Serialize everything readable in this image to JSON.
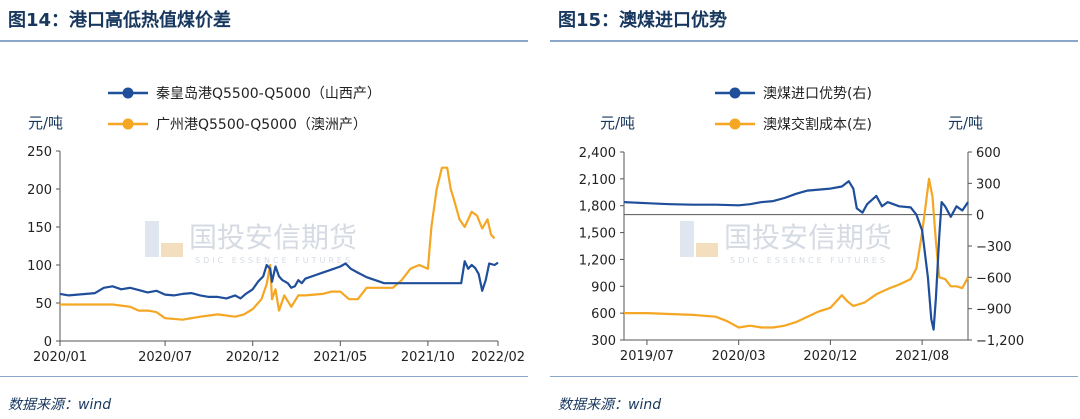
{
  "left_panel": {
    "title": "图14：港口高低热值煤价差",
    "source": "数据来源：wind",
    "watermark": {
      "cn": "国投安信期货",
      "en": "SDIC ESSENCE FUTURES"
    }
  },
  "right_panel": {
    "title": "图15：澳煤进口优势",
    "source": "数据来源：wind",
    "watermark": {
      "cn": "国投安信期货",
      "en": "SDIC ESSENCE FUTURES"
    }
  },
  "colors": {
    "blue": "#1f4e9b",
    "orange": "#f5a623",
    "axis": "#555555",
    "title": "#17375e"
  },
  "chart_data": [
    {
      "type": "line",
      "title": "图14：港口高低热值煤价差",
      "unit_left": "元/吨",
      "y_ticks": [
        "0",
        "50",
        "100",
        "150",
        "200",
        "250"
      ],
      "ylim": [
        0,
        250
      ],
      "x_ticks": [
        "2020/01",
        "2020/07",
        "2020/12",
        "2021/05",
        "2021/10",
        "2022/02"
      ],
      "x_tick_pos": [
        0,
        6,
        11,
        16,
        21,
        25
      ],
      "xlim": [
        0,
        25
      ],
      "series": [
        {
          "name": "秦皇岛港Q5500-Q5000（山西产）",
          "color": "#1f4e9b",
          "points": [
            [
              0,
              62
            ],
            [
              0.5,
              60
            ],
            [
              1,
              61
            ],
            [
              1.5,
              62
            ],
            [
              2,
              63
            ],
            [
              2.5,
              70
            ],
            [
              3,
              72
            ],
            [
              3.5,
              68
            ],
            [
              4,
              70
            ],
            [
              4.5,
              67
            ],
            [
              5,
              64
            ],
            [
              5.5,
              66
            ],
            [
              6,
              61
            ],
            [
              6.5,
              60
            ],
            [
              7,
              62
            ],
            [
              7.5,
              63
            ],
            [
              8,
              60
            ],
            [
              8.5,
              58
            ],
            [
              9,
              58
            ],
            [
              9.5,
              56
            ],
            [
              10,
              60
            ],
            [
              10.3,
              56
            ],
            [
              10.6,
              62
            ],
            [
              11,
              68
            ],
            [
              11.3,
              78
            ],
            [
              11.6,
              85
            ],
            [
              11.8,
              100
            ],
            [
              12,
              95
            ],
            [
              12.1,
              78
            ],
            [
              12.3,
              98
            ],
            [
              12.5,
              85
            ],
            [
              12.7,
              80
            ],
            [
              13,
              76
            ],
            [
              13.2,
              70
            ],
            [
              13.4,
              72
            ],
            [
              13.6,
              80
            ],
            [
              13.8,
              76
            ],
            [
              14,
              82
            ],
            [
              14.5,
              86
            ],
            [
              15,
              90
            ],
            [
              15.5,
              94
            ],
            [
              16,
              98
            ],
            [
              16.3,
              102
            ],
            [
              16.6,
              95
            ],
            [
              17,
              90
            ],
            [
              17.5,
              84
            ],
            [
              18,
              80
            ],
            [
              18.5,
              76
            ],
            [
              19,
              76
            ],
            [
              20,
              76
            ],
            [
              21,
              76
            ],
            [
              22,
              76
            ],
            [
              22.9,
              76
            ],
            [
              23.1,
              105
            ],
            [
              23.3,
              95
            ],
            [
              23.5,
              100
            ],
            [
              23.7,
              96
            ],
            [
              23.9,
              88
            ],
            [
              24.1,
              66
            ],
            [
              24.3,
              80
            ],
            [
              24.5,
              102
            ],
            [
              24.8,
              100
            ],
            [
              25,
              103
            ]
          ]
        },
        {
          "name": "广州港Q5500-Q5000（澳洲产）",
          "color": "#f5a623",
          "points": [
            [
              0,
              48
            ],
            [
              1,
              48
            ],
            [
              2,
              48
            ],
            [
              3,
              48
            ],
            [
              4,
              45
            ],
            [
              4.5,
              40
            ],
            [
              5,
              40
            ],
            [
              5.5,
              38
            ],
            [
              6,
              30
            ],
            [
              7,
              28
            ],
            [
              8,
              32
            ],
            [
              9,
              35
            ],
            [
              10,
              32
            ],
            [
              10.5,
              35
            ],
            [
              11,
              42
            ],
            [
              11.5,
              55
            ],
            [
              11.8,
              75
            ],
            [
              12,
              100
            ],
            [
              12.1,
              55
            ],
            [
              12.3,
              68
            ],
            [
              12.5,
              40
            ],
            [
              12.8,
              60
            ],
            [
              13.2,
              45
            ],
            [
              13.6,
              60
            ],
            [
              14,
              60
            ],
            [
              15,
              62
            ],
            [
              15.5,
              65
            ],
            [
              16,
              65
            ],
            [
              16.5,
              55
            ],
            [
              17,
              55
            ],
            [
              17.5,
              70
            ],
            [
              18,
              70
            ],
            [
              19,
              70
            ],
            [
              19.5,
              80
            ],
            [
              20,
              95
            ],
            [
              20.5,
              100
            ],
            [
              21,
              95
            ],
            [
              21.2,
              150
            ],
            [
              21.5,
              200
            ],
            [
              21.8,
              228
            ],
            [
              22.1,
              228
            ],
            [
              22.3,
              200
            ],
            [
              22.5,
              185
            ],
            [
              22.8,
              160
            ],
            [
              23.1,
              150
            ],
            [
              23.5,
              170
            ],
            [
              23.8,
              165
            ],
            [
              24.1,
              148
            ],
            [
              24.4,
              160
            ],
            [
              24.6,
              140
            ],
            [
              24.8,
              135
            ]
          ]
        }
      ]
    },
    {
      "type": "line",
      "title": "图15：澳煤进口优势",
      "unit_left": "元/吨",
      "unit_right": "元/吨",
      "y_left_ticks": [
        "300",
        "600",
        "900",
        "1,200",
        "1,500",
        "1,800",
        "2,100",
        "2,400"
      ],
      "ylim_left": [
        300,
        2400
      ],
      "y_right_ticks": [
        "−1,200",
        "−900",
        "−600",
        "−300",
        "0",
        "300",
        "600"
      ],
      "ylim_right": [
        -1200,
        600
      ],
      "x_ticks": [
        "2019/07",
        "2020/03",
        "2020/12",
        "2021/08"
      ],
      "x_tick_pos": [
        2,
        10,
        18,
        26
      ],
      "xlim": [
        0,
        30
      ],
      "series": [
        {
          "name": "澳煤进口优势(右)",
          "color": "#1f4e9b",
          "axis": "right",
          "points": [
            [
              0,
              120
            ],
            [
              2,
              110
            ],
            [
              4,
              100
            ],
            [
              6,
              95
            ],
            [
              8,
              95
            ],
            [
              10,
              90
            ],
            [
              11,
              100
            ],
            [
              12,
              120
            ],
            [
              13,
              130
            ],
            [
              14,
              160
            ],
            [
              15,
              200
            ],
            [
              16,
              230
            ],
            [
              17,
              240
            ],
            [
              18,
              250
            ],
            [
              19,
              270
            ],
            [
              19.6,
              320
            ],
            [
              20,
              250
            ],
            [
              20.3,
              60
            ],
            [
              20.8,
              20
            ],
            [
              21.2,
              100
            ],
            [
              22,
              180
            ],
            [
              22.5,
              80
            ],
            [
              23,
              120
            ],
            [
              24,
              80
            ],
            [
              25,
              70
            ],
            [
              25.5,
              0
            ],
            [
              26,
              -150
            ],
            [
              26.5,
              -600
            ],
            [
              26.8,
              -1000
            ],
            [
              27,
              -1100
            ],
            [
              27.2,
              -800
            ],
            [
              27.5,
              -200
            ],
            [
              27.7,
              120
            ],
            [
              28,
              80
            ],
            [
              28.5,
              -20
            ],
            [
              29,
              80
            ],
            [
              29.5,
              40
            ],
            [
              30,
              120
            ]
          ]
        },
        {
          "name": "澳煤交割成本(左)",
          "color": "#f5a623",
          "axis": "left",
          "points": [
            [
              0,
              600
            ],
            [
              2,
              600
            ],
            [
              4,
              590
            ],
            [
              6,
              580
            ],
            [
              8,
              560
            ],
            [
              9,
              510
            ],
            [
              10,
              440
            ],
            [
              11,
              460
            ],
            [
              12,
              440
            ],
            [
              13,
              440
            ],
            [
              14,
              460
            ],
            [
              15,
              500
            ],
            [
              16,
              560
            ],
            [
              17,
              620
            ],
            [
              18,
              660
            ],
            [
              19,
              800
            ],
            [
              19.5,
              730
            ],
            [
              20,
              680
            ],
            [
              21,
              720
            ],
            [
              22,
              810
            ],
            [
              23,
              870
            ],
            [
              24,
              920
            ],
            [
              25,
              980
            ],
            [
              25.5,
              1100
            ],
            [
              26,
              1500
            ],
            [
              26.3,
              1800
            ],
            [
              26.6,
              2100
            ],
            [
              26.9,
              1900
            ],
            [
              27.2,
              1400
            ],
            [
              27.5,
              1000
            ],
            [
              28,
              980
            ],
            [
              28.5,
              900
            ],
            [
              29,
              900
            ],
            [
              29.5,
              880
            ],
            [
              30,
              1000
            ]
          ]
        }
      ]
    }
  ]
}
